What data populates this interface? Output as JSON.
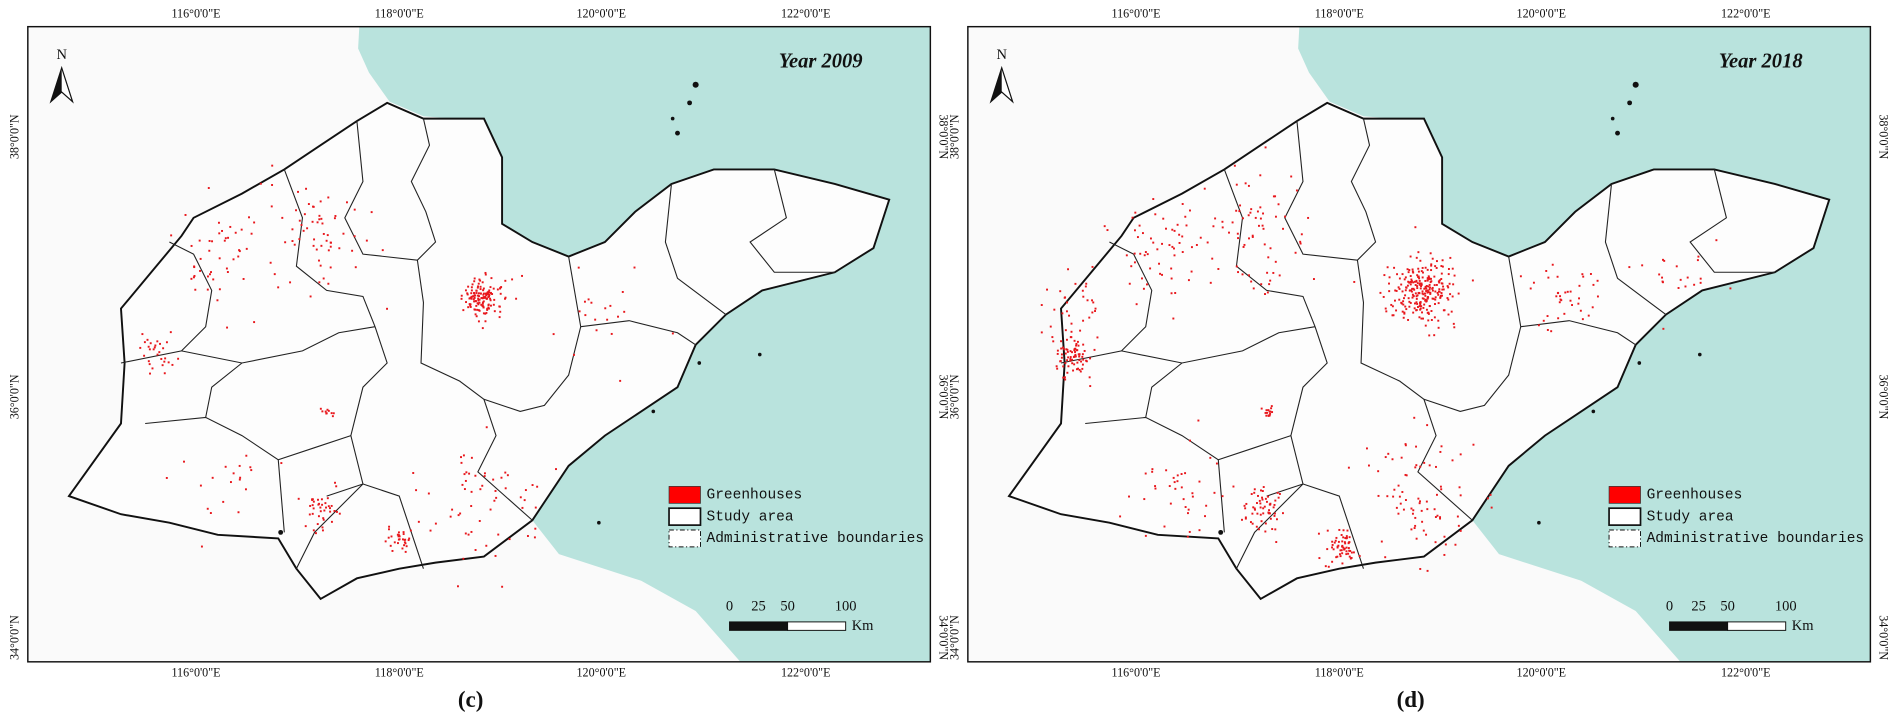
{
  "panels": [
    {
      "title": "Year 2009",
      "label": "(c)",
      "north": "N",
      "x_ticks": [
        "116°0'0\"E",
        "118°0'0\"E",
        "120°0'0\"E",
        "122°0'0\"E"
      ],
      "y_ticks": [
        "38°0'0\"N",
        "36°0'0\"N",
        "34°0'0\"N"
      ],
      "legend": [
        "Greenhouses",
        "Study area",
        "Administrative boundaries"
      ],
      "scale": {
        "labels": [
          "0",
          "25",
          "50",
          "100"
        ],
        "unit": "Km"
      }
    },
    {
      "title": "Year 2018",
      "label": "(d)",
      "north": "N",
      "x_ticks": [
        "116°0'0\"E",
        "118°0'0\"E",
        "120°0'0\"E",
        "122°0'0\"E"
      ],
      "y_ticks": [
        "38°0'0\"N",
        "36°0'0\"N",
        "34°0'0\"N"
      ],
      "legend": [
        "Greenhouses",
        "Study area",
        "Administrative boundaries"
      ],
      "scale": {
        "labels": [
          "0",
          "25",
          "50",
          "100"
        ],
        "unit": "Km"
      }
    }
  ]
}
